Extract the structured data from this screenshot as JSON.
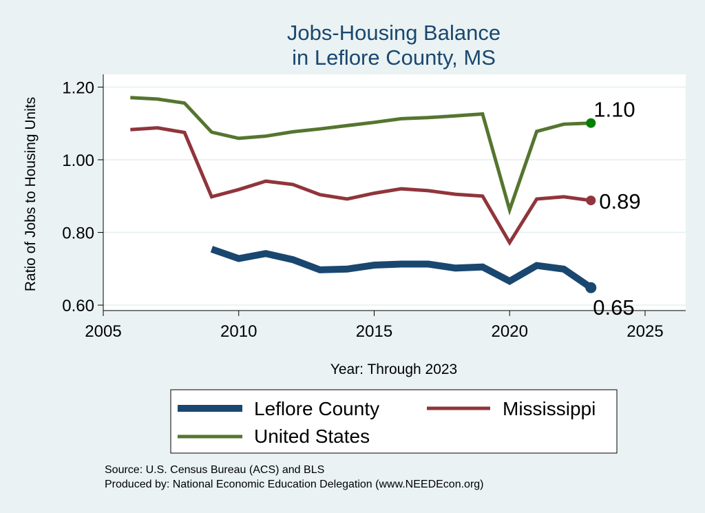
{
  "chart_data": {
    "type": "line",
    "title": [
      "Jobs-Housing Balance",
      "in Leflore County, MS"
    ],
    "xlabel": "Year: Through 2023",
    "ylabel": "Ratio of Jobs to Housing Units",
    "xlim": [
      2005,
      2026.5
    ],
    "ylim": [
      0.585,
      1.235
    ],
    "xticks": [
      2005,
      2010,
      2015,
      2020,
      2025
    ],
    "yticks": [
      0.6,
      0.8,
      1.0,
      1.2
    ],
    "ytick_labels": [
      "0.60",
      "0.80",
      "1.00",
      "1.20"
    ],
    "grid": true,
    "legend_position": "bottom",
    "series": [
      {
        "name": "Leflore County",
        "color": "#1a476f",
        "x": [
          2009,
          2010,
          2011,
          2012,
          2013,
          2014,
          2015,
          2016,
          2017,
          2018,
          2019,
          2020,
          2021,
          2022,
          2023
        ],
        "values": [
          0.754,
          0.728,
          0.742,
          0.725,
          0.697,
          0.699,
          0.71,
          0.713,
          0.713,
          0.702,
          0.705,
          0.666,
          0.709,
          0.699,
          0.648
        ],
        "end_label": "0.65"
      },
      {
        "name": "Mississippi",
        "color": "#90353b",
        "x": [
          2006,
          2007,
          2008,
          2009,
          2010,
          2011,
          2012,
          2013,
          2014,
          2015,
          2016,
          2017,
          2018,
          2019,
          2020,
          2021,
          2022,
          2023
        ],
        "values": [
          1.083,
          1.088,
          1.075,
          0.898,
          0.918,
          0.941,
          0.932,
          0.904,
          0.892,
          0.908,
          0.92,
          0.915,
          0.905,
          0.9,
          0.772,
          0.892,
          0.898,
          0.888
        ],
        "end_label": "0.89"
      },
      {
        "name": "United States",
        "color": "#55752f",
        "x": [
          2006,
          2007,
          2008,
          2009,
          2010,
          2011,
          2012,
          2013,
          2014,
          2015,
          2016,
          2017,
          2018,
          2019,
          2020,
          2021,
          2022,
          2023
        ],
        "values": [
          1.171,
          1.167,
          1.156,
          1.076,
          1.059,
          1.065,
          1.077,
          1.085,
          1.094,
          1.103,
          1.113,
          1.116,
          1.121,
          1.126,
          0.862,
          1.078,
          1.098,
          1.101
        ],
        "end_label": "1.10"
      }
    ],
    "notes": [
      "Source: U.S. Census Bureau (ACS) and BLS",
      "Produced by: National Economic Education Delegation (www.NEEDEcon.org)"
    ]
  },
  "style": {
    "background": "#eaf2f3",
    "plot_background": "#ffffff",
    "grid_color": "#eaf2f3",
    "title_color": "#1a476f",
    "us_marker_color": "#008000"
  }
}
